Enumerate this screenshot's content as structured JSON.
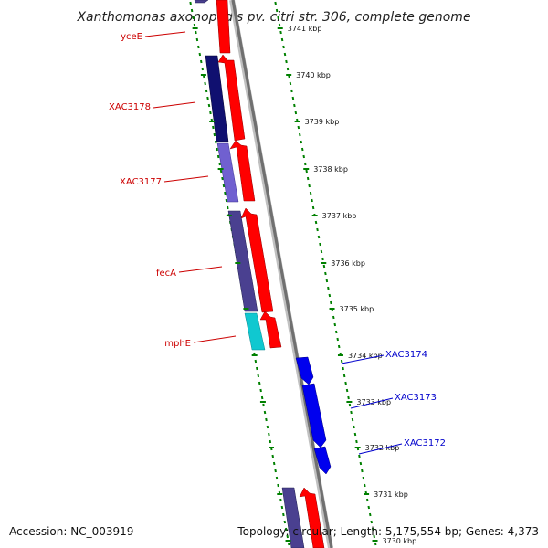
{
  "title": "Xanthomonas axonopodis pv. citri str. 306, complete genome",
  "accession_label": "Accession: NC_003919",
  "summary_label": "Topology: circular; Length: 5,175,554 bp; Genes: 4,373",
  "colors": {
    "forward_cds": "#ff0000",
    "reverse_cds_blue": "#0000ee",
    "reverse_cog_navy": "#101070",
    "reverse_cog_slate": "#4a4090",
    "reverse_cog_lavender": "#7060d0",
    "reverse_cog_cyan": "#10c8d0",
    "backbone": "#808080",
    "tick_dots": "#008000",
    "left_labels": "#cc0000",
    "right_labels": "#0000cc"
  },
  "ticks": [
    {
      "label": "3741 kbp"
    },
    {
      "label": "3740 kbp"
    },
    {
      "label": "3739 kbp"
    },
    {
      "label": "3738 kbp"
    },
    {
      "label": "3737 kbp"
    },
    {
      "label": "3736 kbp"
    },
    {
      "label": "3735 kbp"
    },
    {
      "label": "3734 kbp"
    },
    {
      "label": "3733 kbp"
    },
    {
      "label": "3732 kbp"
    },
    {
      "label": "3731 kbp"
    },
    {
      "label": "3730 kbp"
    }
  ],
  "left_gene_labels": [
    {
      "name": "yceE"
    },
    {
      "name": "XAC3178"
    },
    {
      "name": "XAC3177"
    },
    {
      "name": "fecA"
    },
    {
      "name": "mphE"
    }
  ],
  "right_gene_labels": [
    {
      "name": "XAC3174"
    },
    {
      "name": "XAC3173"
    },
    {
      "name": "XAC3172"
    }
  ]
}
